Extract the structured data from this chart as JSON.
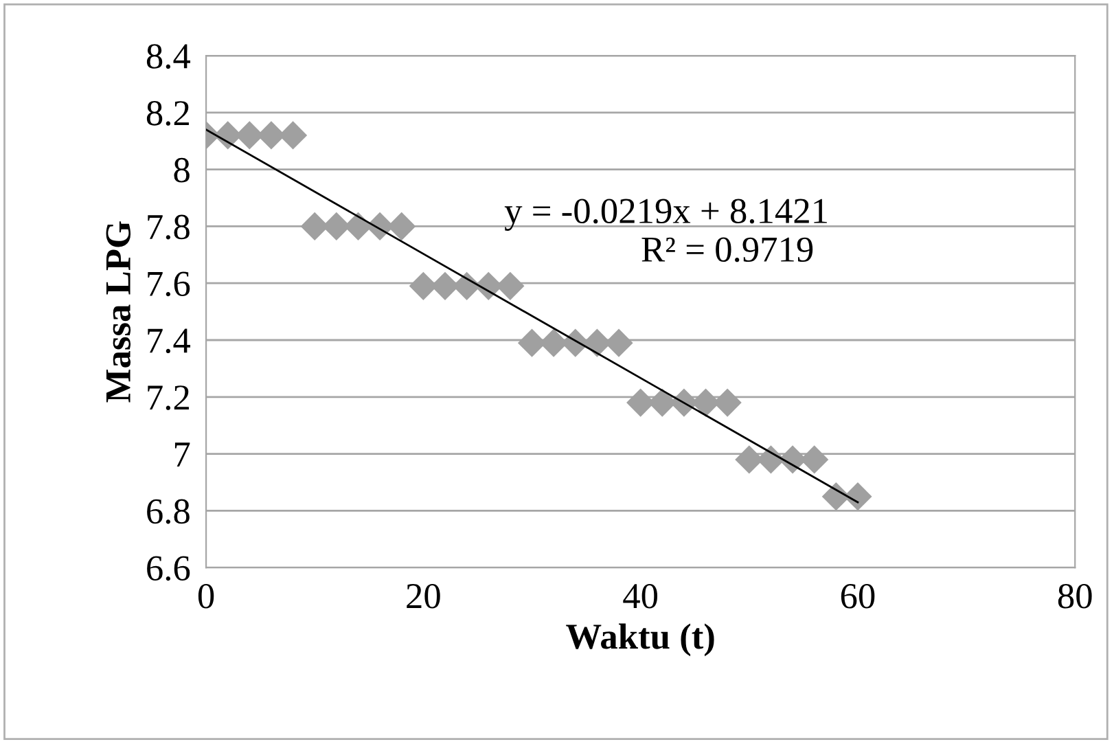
{
  "chart_data": {
    "type": "scatter",
    "xlabel": "Waktu (t)",
    "ylabel": "Massa LPG",
    "xlim": [
      0,
      80
    ],
    "xticks": [
      0,
      20,
      40,
      60,
      80
    ],
    "ylim": [
      6.6,
      8.4
    ],
    "yticks": [
      6.6,
      6.8,
      7,
      7.2,
      7.4,
      7.6,
      7.8,
      8,
      8.2,
      8.4
    ],
    "grid": "y",
    "legend": false,
    "series": [
      {
        "marker": "diamond",
        "color": "#a0a0a0",
        "x": [
          0,
          2,
          4,
          6,
          8,
          10,
          12,
          14,
          16,
          18,
          20,
          22,
          24,
          26,
          28,
          30,
          32,
          34,
          36,
          38,
          40,
          42,
          44,
          46,
          48,
          50,
          52,
          54,
          56,
          58,
          60
        ],
        "values": [
          8.12,
          8.12,
          8.12,
          8.12,
          8.12,
          7.8,
          7.8,
          7.8,
          7.8,
          7.8,
          7.59,
          7.59,
          7.59,
          7.59,
          7.59,
          7.39,
          7.39,
          7.39,
          7.39,
          7.39,
          7.18,
          7.18,
          7.18,
          7.18,
          7.18,
          6.98,
          6.98,
          6.98,
          6.98,
          6.85,
          6.85
        ]
      },
      {
        "type": "line",
        "color": "#000000",
        "x": [
          0,
          60
        ],
        "values": [
          8.14,
          6.83
        ]
      }
    ],
    "annotations": [
      "y = -0.0219x + 8.1421",
      "R² = 0.9719"
    ]
  }
}
